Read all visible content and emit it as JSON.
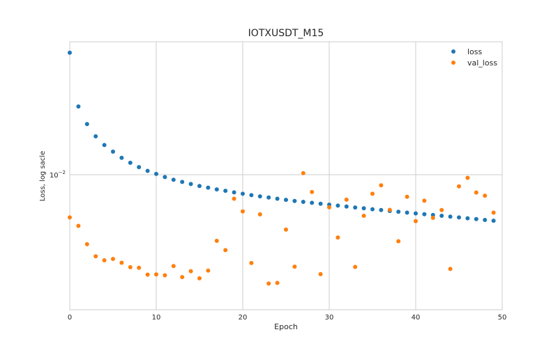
{
  "chart_data": {
    "type": "scatter",
    "title": "IOTXUSDT_M15",
    "xlabel": "Epoch",
    "ylabel": "Loss, log sacle",
    "xlim": [
      0,
      50
    ],
    "ylim": [
      0.0042,
      0.0235
    ],
    "y_scale": "log",
    "grid": true,
    "legend_position": "top-right",
    "x_ticks": [
      0,
      10,
      20,
      30,
      40,
      50
    ],
    "y_ticks": [
      {
        "value": 0.01,
        "base": "10",
        "exponent": "−2"
      }
    ],
    "series": [
      {
        "name": "loss",
        "color": "#1f77b4",
        "x": [
          0,
          1,
          2,
          3,
          4,
          5,
          6,
          7,
          8,
          9,
          10,
          11,
          12,
          13,
          14,
          15,
          16,
          17,
          18,
          19,
          20,
          21,
          22,
          23,
          24,
          25,
          26,
          27,
          28,
          29,
          30,
          31,
          32,
          33,
          34,
          35,
          36,
          37,
          38,
          39,
          40,
          41,
          42,
          43,
          44,
          45,
          46,
          47,
          48,
          49
        ],
        "values": [
          0.0219,
          0.0155,
          0.01385,
          0.0128,
          0.0121,
          0.0116,
          0.01115,
          0.0108,
          0.0105,
          0.01025,
          0.01005,
          0.00985,
          0.00968,
          0.00955,
          0.00942,
          0.0093,
          0.0092,
          0.0091,
          0.00902,
          0.00893,
          0.00885,
          0.00877,
          0.0087,
          0.00864,
          0.00857,
          0.00851,
          0.00845,
          0.0084,
          0.00835,
          0.0083,
          0.00825,
          0.0082,
          0.00815,
          0.0081,
          0.00806,
          0.00801,
          0.00797,
          0.00792,
          0.00788,
          0.00784,
          0.0078,
          0.00776,
          0.00772,
          0.00768,
          0.00764,
          0.0076,
          0.00756,
          0.00752,
          0.00748,
          0.00744
        ]
      },
      {
        "name": "val_loss",
        "color": "#ff7f0e",
        "x": [
          0,
          1,
          2,
          3,
          4,
          5,
          6,
          7,
          8,
          9,
          10,
          11,
          12,
          13,
          14,
          15,
          16,
          17,
          18,
          19,
          20,
          21,
          22,
          23,
          24,
          25,
          26,
          27,
          28,
          29,
          30,
          31,
          32,
          33,
          34,
          35,
          36,
          37,
          38,
          39,
          40,
          41,
          42,
          43,
          44,
          45,
          46,
          47,
          48,
          49
        ],
        "values": [
          0.0076,
          0.0072,
          0.0064,
          0.00592,
          0.00577,
          0.00582,
          0.00568,
          0.00552,
          0.0055,
          0.00526,
          0.00527,
          0.00524,
          0.00556,
          0.00518,
          0.00538,
          0.00514,
          0.0054,
          0.00654,
          0.00616,
          0.00857,
          0.0079,
          0.00567,
          0.00775,
          0.00497,
          0.00499,
          0.00703,
          0.00554,
          0.0101,
          0.00895,
          0.00528,
          0.00811,
          0.00668,
          0.00852,
          0.00553,
          0.00768,
          0.00885,
          0.00934,
          0.00798,
          0.00652,
          0.00868,
          0.00742,
          0.00846,
          0.00758,
          0.00797,
          0.00546,
          0.00928,
          0.0098,
          0.00892,
          0.00874,
          0.00784
        ]
      }
    ]
  }
}
